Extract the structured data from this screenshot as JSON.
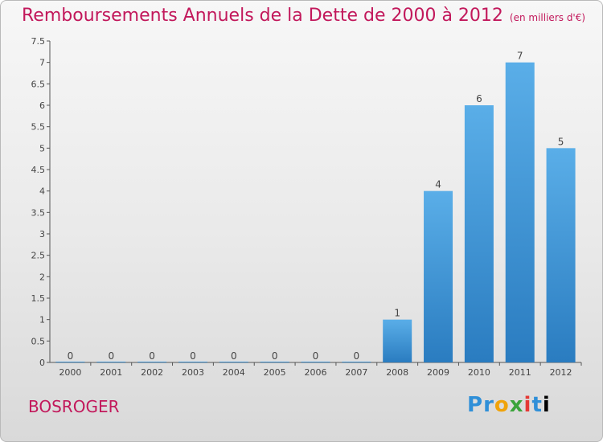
{
  "header": {
    "title": "Remboursements Annuels de la Dette de 2000 à 2012",
    "unit": "(en milliers d'€)"
  },
  "footer": {
    "place": "BOSROGER",
    "logo": [
      "P",
      "r",
      "o",
      "x",
      "i",
      "t",
      "i"
    ]
  },
  "colors": {
    "title": "#c2185b",
    "bar_top": "#5aaee8",
    "bar_bottom": "#2a7cc0",
    "axis": "#555555"
  },
  "chart_data": {
    "type": "bar",
    "title": "Remboursements Annuels de la Dette de 2000 à 2012",
    "xlabel": "",
    "ylabel": "",
    "categories": [
      "2000",
      "2001",
      "2002",
      "2003",
      "2004",
      "2005",
      "2006",
      "2007",
      "2008",
      "2009",
      "2010",
      "2011",
      "2012"
    ],
    "values": [
      0,
      0,
      0,
      0,
      0,
      0,
      0,
      0,
      1,
      4,
      6,
      7,
      5
    ],
    "ylim": [
      0,
      7.5
    ],
    "yticks": [
      "0",
      "0.5",
      "1",
      "1.5",
      "2",
      "2.5",
      "3",
      "3.5",
      "4",
      "4.5",
      "5",
      "5.5",
      "6",
      "6.5",
      "7",
      "7.5"
    ],
    "grid": false,
    "legend": "none"
  }
}
